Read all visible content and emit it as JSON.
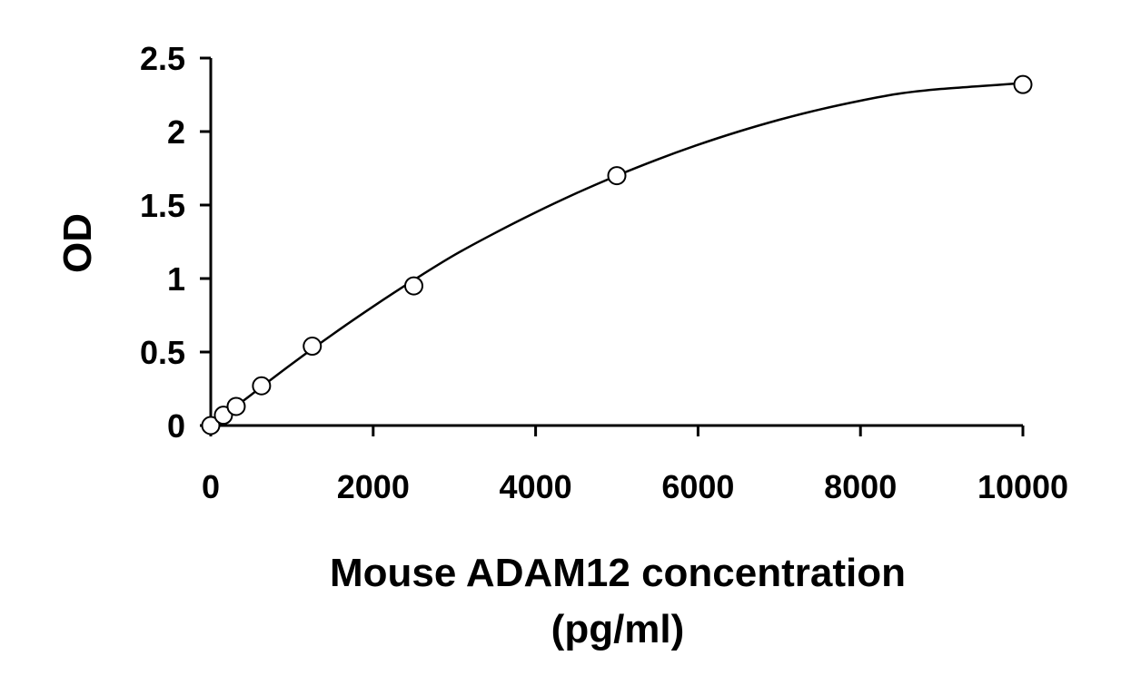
{
  "chart_data": {
    "type": "scatter",
    "title": "",
    "xlabel_lines": [
      "Mouse ADAM12 concentration",
      "(pg/ml)"
    ],
    "ylabel": "OD",
    "xlim": [
      0,
      10000
    ],
    "ylim": [
      0,
      2.5
    ],
    "x_ticks": [
      0,
      2000,
      4000,
      6000,
      8000,
      10000
    ],
    "x_tick_labels": [
      "0",
      "2000",
      "4000",
      "6000",
      "8000",
      "10000"
    ],
    "y_ticks": [
      0,
      0.5,
      1,
      1.5,
      2,
      2.5
    ],
    "y_tick_labels": [
      "0",
      "0.5",
      "1",
      "1.5",
      "2",
      "2.5"
    ],
    "grid": false,
    "legend": "none",
    "marker": "open-circle",
    "series": [
      {
        "points": [
          {
            "x": 0,
            "y": 0.0
          },
          {
            "x": 156,
            "y": 0.07
          },
          {
            "x": 313,
            "y": 0.13
          },
          {
            "x": 625,
            "y": 0.27
          },
          {
            "x": 1250,
            "y": 0.54
          },
          {
            "x": 2500,
            "y": 0.95
          },
          {
            "x": 5000,
            "y": 1.7
          },
          {
            "x": 10000,
            "y": 2.32
          }
        ]
      }
    ],
    "fit_curve": {
      "type": "smooth",
      "x": [
        0,
        500,
        1000,
        1500,
        2000,
        2500,
        3000,
        3500,
        4000,
        4500,
        5000,
        5500,
        6000,
        6500,
        7000,
        7500,
        8000,
        8500,
        9000,
        9500,
        10000
      ],
      "y": [
        0.0,
        0.21,
        0.42,
        0.62,
        0.81,
        0.99,
        1.16,
        1.31,
        1.45,
        1.58,
        1.7,
        1.81,
        1.91,
        2.0,
        2.08,
        2.15,
        2.21,
        2.26,
        2.29,
        2.31,
        2.33
      ]
    },
    "colors": {
      "axis": "#000000",
      "marker_stroke": "#000000",
      "marker_fill": "#ffffff",
      "curve": "#000000"
    }
  }
}
